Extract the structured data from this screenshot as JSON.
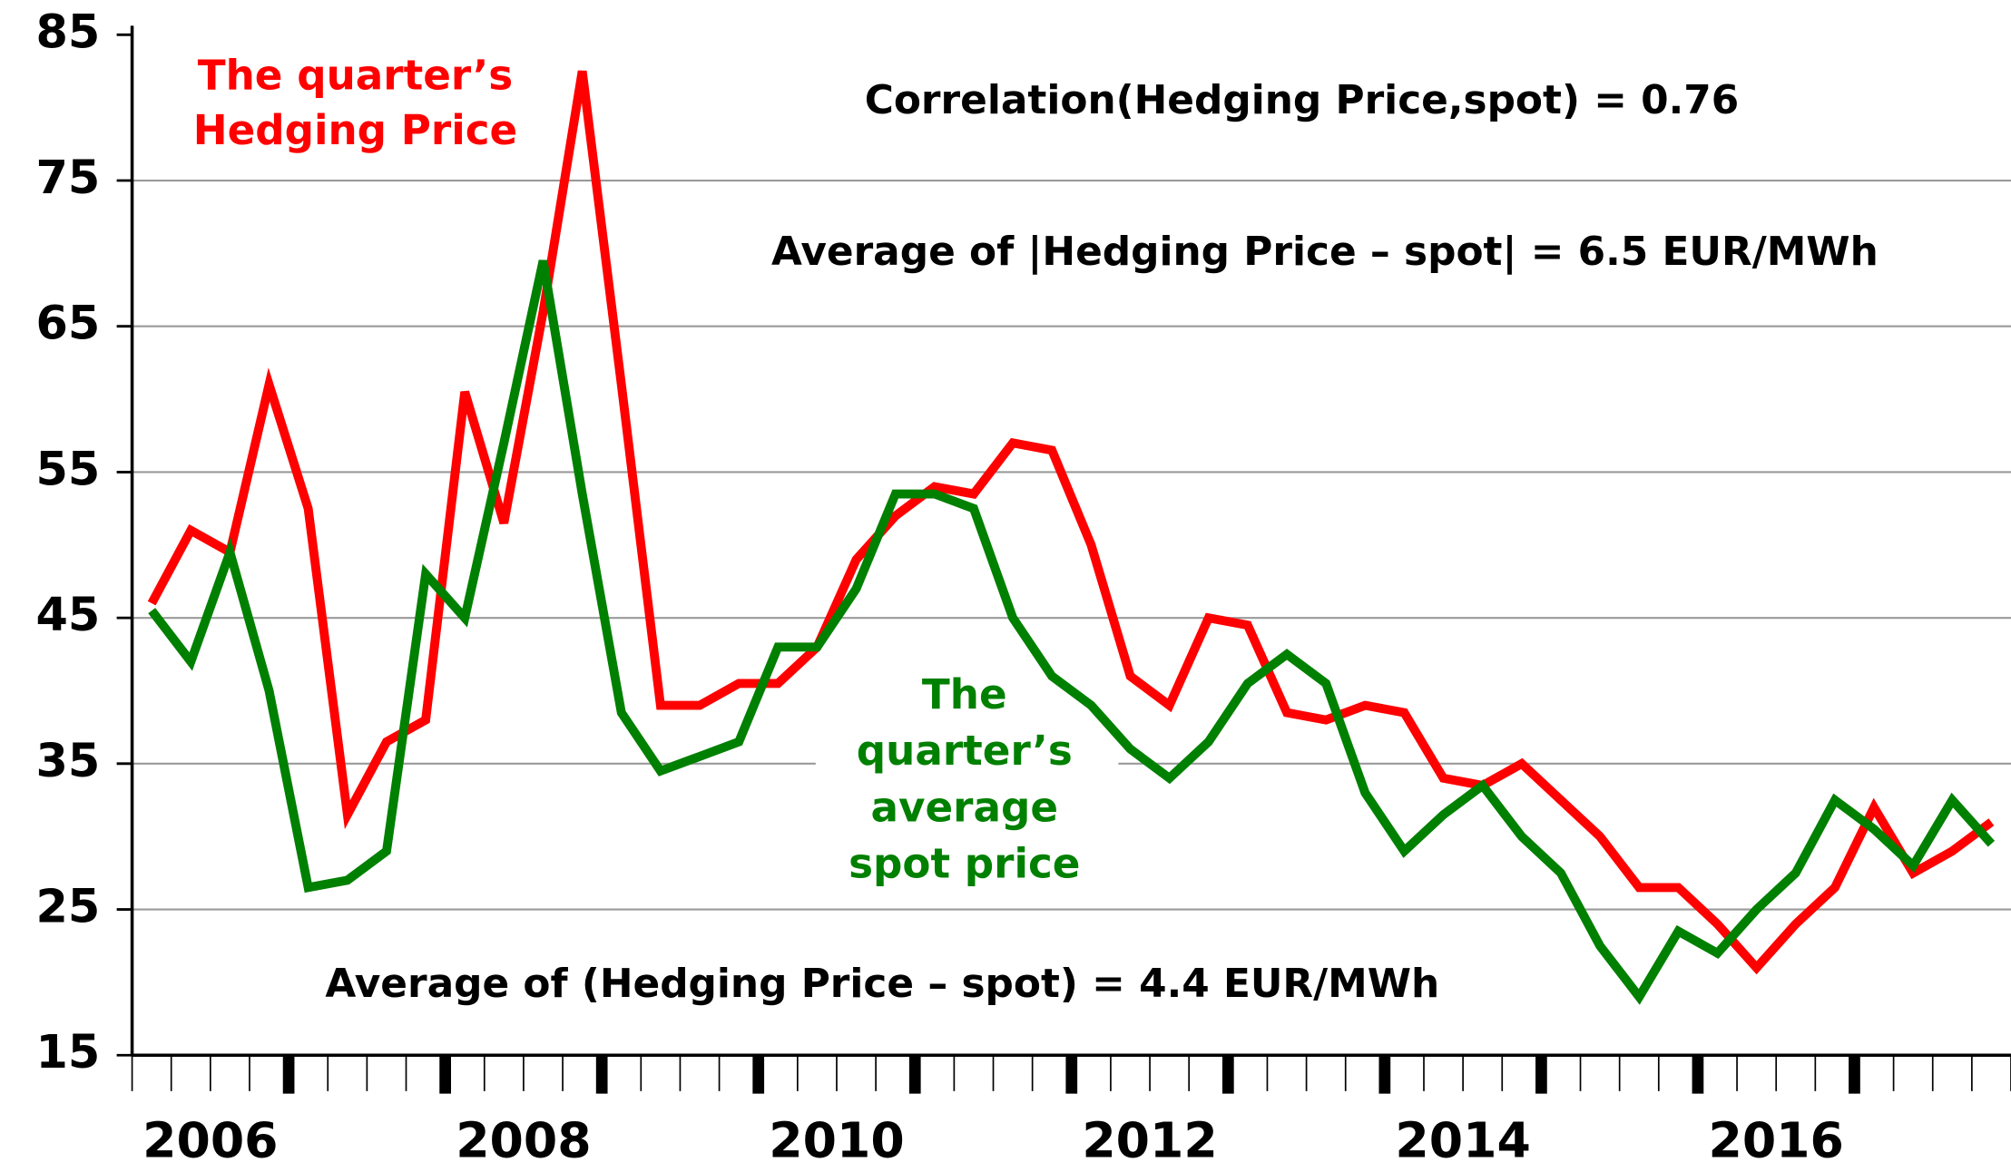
{
  "chart_data": {
    "type": "line",
    "x": [
      2006.125,
      2006.375,
      2006.625,
      2006.875,
      2007.125,
      2007.375,
      2007.625,
      2007.875,
      2008.125,
      2008.375,
      2008.625,
      2008.875,
      2009.125,
      2009.375,
      2009.625,
      2009.875,
      2010.125,
      2010.375,
      2010.625,
      2010.875,
      2011.125,
      2011.375,
      2011.625,
      2011.875,
      2012.125,
      2012.375,
      2012.625,
      2012.875,
      2013.125,
      2013.375,
      2013.625,
      2013.875,
      2014.125,
      2014.375,
      2014.625,
      2014.875,
      2015.125,
      2015.375,
      2015.625,
      2015.875,
      2016.125,
      2016.375,
      2016.625,
      2016.875,
      2017.125,
      2017.375,
      2017.625,
      2017.875
    ],
    "series": [
      {
        "name": "The quarter’s Hedging Price",
        "color": "#ff0000",
        "values": [
          46,
          51,
          49.5,
          61,
          52.5,
          31.5,
          36.5,
          38,
          60.5,
          51.5,
          66,
          82.5,
          61,
          39,
          39,
          40.5,
          40.5,
          43,
          49,
          52,
          54,
          53.5,
          57,
          56.5,
          50,
          41,
          39,
          45,
          44.5,
          38.5,
          38,
          39,
          38.5,
          34,
          33.5,
          35,
          32.5,
          30,
          26.5,
          26.5,
          24,
          21,
          24,
          26.5,
          32,
          27.5,
          29,
          31
        ]
      },
      {
        "name": "The quarter’s average spot price",
        "color": "#008000",
        "values": [
          45.5,
          42,
          49.5,
          40,
          26.5,
          27,
          29,
          48,
          45,
          57,
          69.5,
          53.5,
          38.5,
          34.5,
          35.5,
          36.5,
          43,
          43,
          47,
          53.5,
          53.5,
          52.5,
          45,
          41,
          39,
          36,
          34,
          36.5,
          40.5,
          42.5,
          40.5,
          33,
          29,
          31.5,
          33.5,
          30,
          27.5,
          22.5,
          19,
          23.5,
          22,
          25,
          27.5,
          32.5,
          30.5,
          28,
          32.5,
          29.5
        ]
      }
    ],
    "xlim": [
      2006,
      2018
    ],
    "xticks": [
      2006,
      2008,
      2010,
      2012,
      2014,
      2016
    ],
    "ylim": [
      15,
      85
    ],
    "yticks": [
      15,
      25,
      35,
      45,
      55,
      65,
      75,
      85
    ],
    "grid": true,
    "annotations": [
      {
        "lines": [
          "The quarter’s",
          "Hedging Price"
        ],
        "color": "#ff0000"
      },
      {
        "lines": [
          "The",
          "quarter’s",
          "average",
          "spot price"
        ],
        "color": "#008000"
      },
      {
        "lines": [
          "Correlation(Hedging Price,spot)  =  0.76"
        ],
        "color": "#000000"
      },
      {
        "lines": [
          "Average of |Hedging Price – spot|   =   6.5 EUR/MWh"
        ],
        "color": "#000000"
      },
      {
        "lines": [
          "Average of (Hedging Price – spot)   =   4.4 EUR/MWh"
        ],
        "color": "#000000"
      }
    ]
  }
}
